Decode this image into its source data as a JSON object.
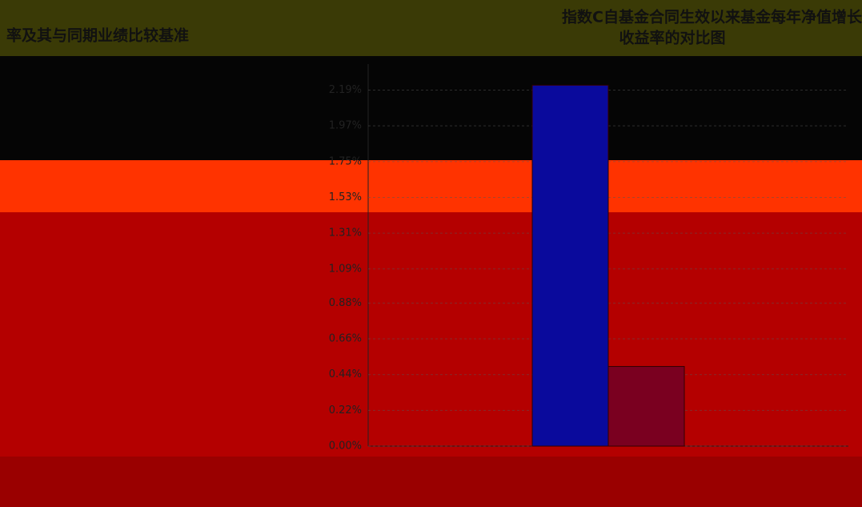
{
  "chart_data": {
    "type": "bar",
    "title_lines": [
      "指数C自基金合同生效以来基金每年净值增长",
      "收益率的对比图"
    ],
    "side_title": "率及其与同期业绩比较基准",
    "categories": [
      null
    ],
    "series": [
      {
        "color": "#0a0a9c",
        "values": [
          2.22
        ]
      },
      {
        "color": "#7a0020",
        "values": [
          0.49
        ]
      }
    ],
    "ylim": [
      0,
      2.35
    ],
    "yticks": [
      {
        "value": 0,
        "label": "0.00%"
      },
      {
        "value": 0.22,
        "label": "0.22%"
      },
      {
        "value": 0.44,
        "label": "0.44%"
      },
      {
        "value": 0.66,
        "label": "0.66%"
      },
      {
        "value": 0.88,
        "label": "0.88%"
      },
      {
        "value": 1.09,
        "label": "1.09%"
      },
      {
        "value": 1.31,
        "label": "1.31%"
      },
      {
        "value": 1.53,
        "label": "1.53%"
      },
      {
        "value": 1.75,
        "label": "1.75%"
      },
      {
        "value": 1.97,
        "label": "1.97%"
      },
      {
        "value": 2.19,
        "label": "2.19%"
      }
    ],
    "grid": true
  }
}
